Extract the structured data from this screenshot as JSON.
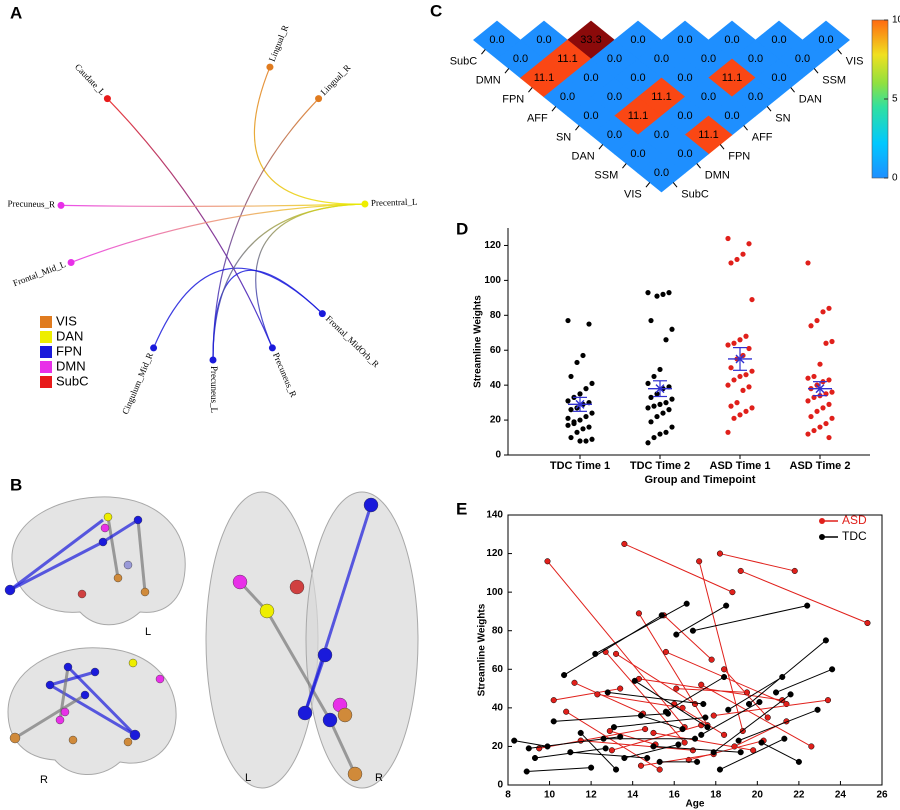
{
  "panel_a": {
    "label": "A",
    "nodes": [
      {
        "label": "Caudate_L",
        "network": 4
      },
      {
        "label": "Lingual_R",
        "network": 0
      },
      {
        "label": "Lingual_R",
        "network": 0
      },
      {
        "label": "Precentral_L",
        "network": 1
      },
      {
        "label": "Frontal_MidOrb_R",
        "network": 2
      },
      {
        "label": "Precuneus_R",
        "network": 2
      },
      {
        "label": "Precuneus_L",
        "network": 2
      },
      {
        "label": "Cingulum_Mid_R",
        "network": 2
      },
      {
        "label": "Frontal_Mid_L",
        "network": 3
      },
      {
        "label": "Precuneus_R",
        "network": 3
      }
    ],
    "edges": [
      [
        0,
        5
      ],
      [
        1,
        3
      ],
      [
        2,
        6
      ],
      [
        9,
        3
      ],
      [
        8,
        3
      ],
      [
        3,
        5
      ],
      [
        7,
        4
      ],
      [
        6,
        4
      ],
      [
        6,
        3
      ]
    ],
    "legend": [
      {
        "name": "VIS",
        "color": "#e07b1f"
      },
      {
        "name": "DAN",
        "color": "#eeee00"
      },
      {
        "name": "FPN",
        "color": "#1a1adb"
      },
      {
        "name": "DMN",
        "color": "#e830e8"
      },
      {
        "name": "SubC",
        "color": "#e81a1a"
      }
    ]
  },
  "panel_b": {
    "label": "B",
    "side_labels": [
      "L",
      "R",
      "L",
      "R"
    ]
  },
  "chart_data": [
    {
      "type": "heatmap_triangle",
      "panel_label": "C",
      "categories": [
        "SubC",
        "DMN",
        "FPN",
        "AFF",
        "SN",
        "DAN",
        "SSM",
        "VIS"
      ],
      "rows": [
        [
          0,
          0,
          33.3,
          0,
          0,
          0,
          0,
          0
        ],
        [
          0,
          11.1,
          0,
          0,
          0,
          0,
          0
        ],
        [
          11.1,
          0,
          0,
          0,
          11.1,
          0
        ],
        [
          0,
          0,
          11.1,
          0,
          0
        ],
        [
          0,
          11.1,
          0,
          0
        ],
        [
          0,
          0,
          11.1
        ],
        [
          0,
          0
        ],
        [
          0
        ]
      ],
      "value_labels": [
        [
          "0.0",
          "0.0",
          "33.3",
          "0.0",
          "0.0",
          "0.0",
          "0.0",
          "0.0"
        ],
        [
          "0.0",
          "11.1",
          "0.0",
          "0.0",
          "0.0",
          "0.0",
          "0.0"
        ],
        [
          "11.1",
          "0.0",
          "0.0",
          "0.0",
          "11.1",
          "0.0"
        ],
        [
          "0.0",
          "0.0",
          "11.1",
          "0.0",
          "0.0"
        ],
        [
          "0.0",
          "11.1",
          "0.0",
          "0.0"
        ],
        [
          "0.0",
          "0.0",
          "11.1"
        ],
        [
          "0.0",
          "0.0"
        ],
        [
          "0.0"
        ]
      ],
      "clim": [
        0,
        10
      ],
      "colorbar_ticks": [
        0,
        5,
        10
      ]
    },
    {
      "type": "dot",
      "panel_label": "D",
      "categories": [
        "TDC Time 1",
        "TDC Time 2",
        "ASD Time 1",
        "ASD Time 2"
      ],
      "xlabel": "Group and Timepoint",
      "ylabel": "Streamline Weights",
      "point_colors": [
        "#000000",
        "#000000",
        "#e0201b",
        "#e0201b"
      ],
      "mean_color": "#3030d0",
      "values": [
        [
          77,
          75,
          57,
          53,
          45,
          41,
          38,
          35,
          33,
          31,
          30,
          29,
          27,
          26,
          24,
          22,
          20,
          18,
          17,
          16,
          15,
          13,
          10,
          9,
          8,
          8,
          19,
          21
        ],
        [
          93,
          93,
          92,
          91,
          77,
          72,
          66,
          49,
          45,
          41,
          39,
          38,
          35,
          33,
          32,
          30,
          29,
          28,
          27,
          26,
          24,
          22,
          19,
          16,
          13,
          12,
          10,
          7
        ],
        [
          124,
          121,
          115,
          112,
          110,
          89,
          68,
          66,
          64,
          63,
          61,
          57,
          55,
          50,
          48,
          46,
          45,
          43,
          40,
          39,
          37,
          30,
          28,
          27,
          25,
          23,
          21,
          13
        ],
        [
          110,
          84,
          82,
          77,
          74,
          65,
          64,
          52,
          45,
          44,
          43,
          42,
          40,
          38,
          36,
          35,
          34,
          33,
          31,
          29,
          27,
          25,
          22,
          21,
          18,
          16,
          14,
          12,
          10
        ]
      ],
      "mean": [
        29,
        38,
        55,
        38
      ],
      "sem": [
        4,
        4.5,
        6.5,
        4
      ],
      "ylim": [
        0,
        130
      ],
      "yticks": [
        0,
        20,
        40,
        60,
        80,
        100,
        120
      ]
    },
    {
      "type": "spaghetti",
      "panel_label": "E",
      "xlabel": "Age",
      "ylabel": "Streamline Weights",
      "legend": "upper right",
      "xlim": [
        8,
        26
      ],
      "xticks": [
        8,
        10,
        12,
        14,
        16,
        18,
        20,
        22,
        24,
        26
      ],
      "ylim": [
        0,
        140
      ],
      "yticks": [
        0,
        20,
        40,
        60,
        80,
        100,
        120,
        140
      ],
      "series": [
        {
          "name": "ASD",
          "color": "#e0201b",
          "subjects": [
            {
              "x": [
                9.9,
                16.5
              ],
              "y": [
                116,
                30
              ]
            },
            {
              "x": [
                13.6,
                18.8
              ],
              "y": [
                125,
                100
              ]
            },
            {
              "x": [
                17.2,
                19.3
              ],
              "y": [
                116,
                28
              ]
            },
            {
              "x": [
                18.2,
                21.8
              ],
              "y": [
                120,
                111
              ]
            },
            {
              "x": [
                19.2,
                25.3
              ],
              "y": [
                111,
                84
              ]
            },
            {
              "x": [
                14.3,
                17.6
              ],
              "y": [
                89,
                31
              ]
            },
            {
              "x": [
                12.7,
                16.5
              ],
              "y": [
                69,
                22
              ]
            },
            {
              "x": [
                15.5,
                17.8
              ],
              "y": [
                88,
                65
              ]
            },
            {
              "x": [
                10.2,
                13.4
              ],
              "y": [
                44,
                50
              ]
            },
            {
              "x": [
                11.2,
                14.5
              ],
              "y": [
                53,
                37
              ]
            },
            {
              "x": [
                12.3,
                16.4
              ],
              "y": [
                47,
                40
              ]
            },
            {
              "x": [
                13.2,
                17.0
              ],
              "y": [
                68,
                42
              ]
            },
            {
              "x": [
                15.6,
                21.4
              ],
              "y": [
                69,
                42
              ]
            },
            {
              "x": [
                14.3,
                21.2
              ],
              "y": [
                55,
                44
              ]
            },
            {
              "x": [
                16.1,
                19.5
              ],
              "y": [
                50,
                48
              ]
            },
            {
              "x": [
                17.3,
                22.6
              ],
              "y": [
                52,
                20
              ]
            },
            {
              "x": [
                18.4,
                20.5
              ],
              "y": [
                60,
                35
              ]
            },
            {
              "x": [
                9.5,
                14.6
              ],
              "y": [
                19,
                29
              ]
            },
            {
              "x": [
                11.5,
                16.9
              ],
              "y": [
                23,
                18
              ]
            },
            {
              "x": [
                13.0,
                17.3
              ],
              "y": [
                18,
                31
              ]
            },
            {
              "x": [
                15.0,
                19.8
              ],
              "y": [
                27,
                18
              ]
            },
            {
              "x": [
                16.0,
                18.4
              ],
              "y": [
                42,
                26
              ]
            },
            {
              "x": [
                17.9,
                23.4
              ],
              "y": [
                36,
                44
              ]
            },
            {
              "x": [
                18.9,
                21.4
              ],
              "y": [
                20,
                33
              ]
            },
            {
              "x": [
                12.9,
                15.1
              ],
              "y": [
                28,
                21
              ]
            },
            {
              "x": [
                10.8,
                15.3
              ],
              "y": [
                38,
                8
              ]
            },
            {
              "x": [
                16.7,
                20.3
              ],
              "y": [
                13,
                23
              ]
            },
            {
              "x": [
                14.4,
                17.9
              ],
              "y": [
                10,
                16
              ]
            }
          ]
        },
        {
          "name": "TDC",
          "color": "#000000",
          "subjects": [
            {
              "x": [
                8.3,
                9.9
              ],
              "y": [
                23,
                20
              ]
            },
            {
              "x": [
                8.9,
                12.0
              ],
              "y": [
                7,
                9
              ]
            },
            {
              "x": [
                9.3,
                12.7
              ],
              "y": [
                14,
                19
              ]
            },
            {
              "x": [
                9.0,
                13.4
              ],
              "y": [
                19,
                25
              ]
            },
            {
              "x": [
                10.2,
                15.7
              ],
              "y": [
                33,
                37
              ]
            },
            {
              "x": [
                10.7,
                15.4
              ],
              "y": [
                57,
                88
              ]
            },
            {
              "x": [
                11.5,
                13.2
              ],
              "y": [
                27,
                8
              ]
            },
            {
              "x": [
                12.2,
                16.6
              ],
              "y": [
                68,
                94
              ]
            },
            {
              "x": [
                12.8,
                17.4
              ],
              "y": [
                48,
                42
              ]
            },
            {
              "x": [
                13.1,
                17.5
              ],
              "y": [
                30,
                35
              ]
            },
            {
              "x": [
                13.6,
                16.2
              ],
              "y": [
                14,
                21
              ]
            },
            {
              "x": [
                14.1,
                17.6
              ],
              "y": [
                54,
                30
              ]
            },
            {
              "x": [
                14.4,
                16.4
              ],
              "y": [
                36,
                29
              ]
            },
            {
              "x": [
                15.0,
                19.2
              ],
              "y": [
                20,
                17
              ]
            },
            {
              "x": [
                15.6,
                18.4
              ],
              "y": [
                38,
                56
              ]
            },
            {
              "x": [
                16.1,
                18.5
              ],
              "y": [
                78,
                93
              ]
            },
            {
              "x": [
                16.9,
                22.4
              ],
              "y": [
                80,
                93
              ]
            },
            {
              "x": [
                17.3,
                20.1
              ],
              "y": [
                26,
                43
              ]
            },
            {
              "x": [
                17.9,
                21.6
              ],
              "y": [
                17,
                47
              ]
            },
            {
              "x": [
                18.2,
                21.3
              ],
              "y": [
                8,
                24
              ]
            },
            {
              "x": [
                18.6,
                21.2
              ],
              "y": [
                39,
                56
              ]
            },
            {
              "x": [
                19.1,
                22.9
              ],
              "y": [
                23,
                39
              ]
            },
            {
              "x": [
                19.6,
                23.3
              ],
              "y": [
                42,
                75
              ]
            },
            {
              "x": [
                20.2,
                22.0
              ],
              "y": [
                22,
                12
              ]
            },
            {
              "x": [
                20.9,
                23.6
              ],
              "y": [
                48,
                60
              ]
            },
            {
              "x": [
                15.3,
                17.1
              ],
              "y": [
                12,
                12
              ]
            },
            {
              "x": [
                12.6,
                17.0
              ],
              "y": [
                24,
                24
              ]
            },
            {
              "x": [
                11.0,
                14.7
              ],
              "y": [
                17,
                14
              ]
            }
          ]
        }
      ]
    }
  ]
}
